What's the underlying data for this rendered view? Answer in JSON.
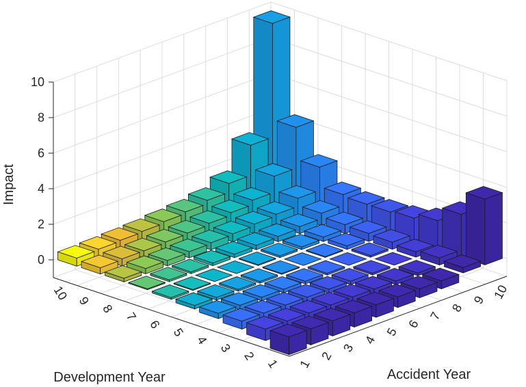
{
  "chart_data": {
    "type": "bar3",
    "title": "",
    "zlabel": "Impact",
    "xlabel": "Accident Year",
    "ylabel": "Development Year",
    "zlim": [
      -1,
      10
    ],
    "zticks": [
      "0",
      "2",
      "4",
      "6",
      "8",
      "10"
    ],
    "x_categories": [
      "1",
      "2",
      "3",
      "4",
      "5",
      "6",
      "7",
      "8",
      "9",
      "10"
    ],
    "y_categories": [
      "1",
      "2",
      "3",
      "4",
      "5",
      "6",
      "7",
      "8",
      "9",
      "10"
    ],
    "grid": true,
    "colormap": "parula",
    "cells": [
      {
        "x": 1,
        "y": 1,
        "value": -1.0
      },
      {
        "x": 2,
        "y": 1,
        "value": -0.9
      },
      {
        "x": 3,
        "y": 1,
        "value": -0.85
      },
      {
        "x": 4,
        "y": 1,
        "value": -0.8
      },
      {
        "x": 5,
        "y": 1,
        "value": -0.7
      },
      {
        "x": 6,
        "y": 1,
        "value": -0.6
      },
      {
        "x": 7,
        "y": 1,
        "value": -0.5
      },
      {
        "x": 8,
        "y": 1,
        "value": -0.45
      },
      {
        "x": 9,
        "y": 1,
        "value": 0.3
      },
      {
        "x": 10,
        "y": 1,
        "value": 3.7
      },
      {
        "x": 1,
        "y": 2,
        "value": -0.65
      },
      {
        "x": 2,
        "y": 2,
        "value": -0.6
      },
      {
        "x": 3,
        "y": 2,
        "value": -0.5
      },
      {
        "x": 4,
        "y": 2,
        "value": -0.4
      },
      {
        "x": 5,
        "y": 2,
        "value": -0.35
      },
      {
        "x": 6,
        "y": 2,
        "value": -0.3
      },
      {
        "x": 7,
        "y": 2,
        "value": -0.2
      },
      {
        "x": 8,
        "y": 2,
        "value": -0.15
      },
      {
        "x": 9,
        "y": 2,
        "value": 0.4
      },
      {
        "x": 10,
        "y": 2,
        "value": 2.4
      },
      {
        "x": 1,
        "y": 3,
        "value": -0.45
      },
      {
        "x": 2,
        "y": 3,
        "value": -0.4
      },
      {
        "x": 3,
        "y": 3,
        "value": -0.35
      },
      {
        "x": 4,
        "y": 3,
        "value": -0.3
      },
      {
        "x": 5,
        "y": 3,
        "value": -0.25
      },
      {
        "x": 6,
        "y": 3,
        "value": -0.2
      },
      {
        "x": 7,
        "y": 3,
        "value": -0.1
      },
      {
        "x": 8,
        "y": 3,
        "value": 0.0
      },
      {
        "x": 9,
        "y": 3,
        "value": 0.3
      },
      {
        "x": 10,
        "y": 3,
        "value": 1.6
      },
      {
        "x": 1,
        "y": 4,
        "value": -0.3
      },
      {
        "x": 2,
        "y": 4,
        "value": -0.25
      },
      {
        "x": 3,
        "y": 4,
        "value": -0.2
      },
      {
        "x": 4,
        "y": 4,
        "value": -0.2
      },
      {
        "x": 5,
        "y": 4,
        "value": -0.15
      },
      {
        "x": 6,
        "y": 4,
        "value": -0.1
      },
      {
        "x": 7,
        "y": 4,
        "value": 0.0
      },
      {
        "x": 8,
        "y": 4,
        "value": 0.1
      },
      {
        "x": 9,
        "y": 4,
        "value": 0.4
      },
      {
        "x": 10,
        "y": 4,
        "value": 1.3
      },
      {
        "x": 1,
        "y": 5,
        "value": -0.2
      },
      {
        "x": 2,
        "y": 5,
        "value": -0.15
      },
      {
        "x": 3,
        "y": 5,
        "value": -0.1
      },
      {
        "x": 4,
        "y": 5,
        "value": -0.1
      },
      {
        "x": 5,
        "y": 5,
        "value": -0.05
      },
      {
        "x": 6,
        "y": 5,
        "value": 0.0
      },
      {
        "x": 7,
        "y": 5,
        "value": 0.05
      },
      {
        "x": 8,
        "y": 5,
        "value": 0.2
      },
      {
        "x": 9,
        "y": 5,
        "value": 0.45
      },
      {
        "x": 10,
        "y": 5,
        "value": 1.2
      },
      {
        "x": 1,
        "y": 6,
        "value": -0.1
      },
      {
        "x": 2,
        "y": 6,
        "value": -0.05
      },
      {
        "x": 3,
        "y": 6,
        "value": 0.0
      },
      {
        "x": 4,
        "y": 6,
        "value": 0.0
      },
      {
        "x": 5,
        "y": 6,
        "value": 0.05
      },
      {
        "x": 6,
        "y": 6,
        "value": 0.1
      },
      {
        "x": 7,
        "y": 6,
        "value": 0.15
      },
      {
        "x": 8,
        "y": 6,
        "value": 0.25
      },
      {
        "x": 9,
        "y": 6,
        "value": 0.5
      },
      {
        "x": 10,
        "y": 6,
        "value": 1.2
      },
      {
        "x": 1,
        "y": 7,
        "value": 0.05
      },
      {
        "x": 2,
        "y": 7,
        "value": 0.1
      },
      {
        "x": 3,
        "y": 7,
        "value": 0.1
      },
      {
        "x": 4,
        "y": 7,
        "value": 0.15
      },
      {
        "x": 5,
        "y": 7,
        "value": 0.2
      },
      {
        "x": 6,
        "y": 7,
        "value": 0.25
      },
      {
        "x": 7,
        "y": 7,
        "value": 0.3
      },
      {
        "x": 8,
        "y": 7,
        "value": 0.4
      },
      {
        "x": 9,
        "y": 7,
        "value": 0.7
      },
      {
        "x": 10,
        "y": 7,
        "value": 1.3
      },
      {
        "x": 1,
        "y": 8,
        "value": 0.2
      },
      {
        "x": 2,
        "y": 8,
        "value": 0.3
      },
      {
        "x": 3,
        "y": 8,
        "value": 0.3
      },
      {
        "x": 4,
        "y": 8,
        "value": 0.35
      },
      {
        "x": 5,
        "y": 8,
        "value": 0.4
      },
      {
        "x": 6,
        "y": 8,
        "value": 0.45
      },
      {
        "x": 7,
        "y": 8,
        "value": 0.55
      },
      {
        "x": 8,
        "y": 8,
        "value": 0.65
      },
      {
        "x": 9,
        "y": 8,
        "value": 1.1
      },
      {
        "x": 10,
        "y": 8,
        "value": 2.4
      },
      {
        "x": 1,
        "y": 9,
        "value": 0.35
      },
      {
        "x": 2,
        "y": 9,
        "value": 0.4
      },
      {
        "x": 3,
        "y": 9,
        "value": 0.4
      },
      {
        "x": 4,
        "y": 9,
        "value": 0.45
      },
      {
        "x": 5,
        "y": 9,
        "value": 0.5
      },
      {
        "x": 6,
        "y": 9,
        "value": 0.6
      },
      {
        "x": 7,
        "y": 9,
        "value": 0.75
      },
      {
        "x": 8,
        "y": 9,
        "value": 1.0
      },
      {
        "x": 9,
        "y": 9,
        "value": 1.9
      },
      {
        "x": 10,
        "y": 9,
        "value": 4.2
      },
      {
        "x": 1,
        "y": 10,
        "value": 0.45
      },
      {
        "x": 2,
        "y": 10,
        "value": 0.5
      },
      {
        "x": 3,
        "y": 10,
        "value": 0.55
      },
      {
        "x": 4,
        "y": 10,
        "value": 0.6
      },
      {
        "x": 5,
        "y": 10,
        "value": 0.7
      },
      {
        "x": 6,
        "y": 10,
        "value": 0.8
      },
      {
        "x": 7,
        "y": 10,
        "value": 1.0
      },
      {
        "x": 8,
        "y": 10,
        "value": 1.5
      },
      {
        "x": 9,
        "y": 10,
        "value": 3.2
      },
      {
        "x": 10,
        "y": 10,
        "value": 9.6
      }
    ]
  }
}
